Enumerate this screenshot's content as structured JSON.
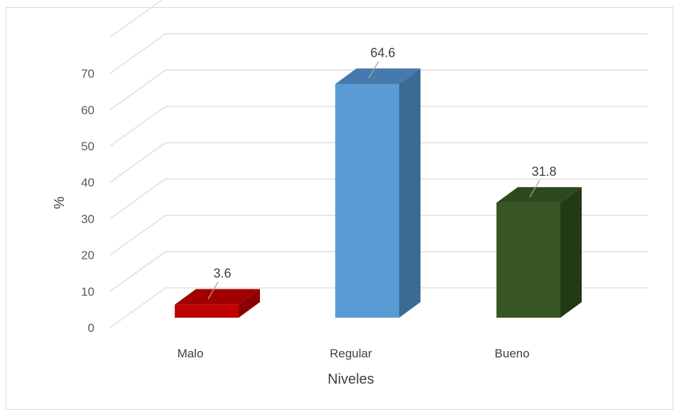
{
  "chart_data": {
    "type": "bar",
    "style": "3d-column",
    "categories": [
      "Malo",
      "Regular",
      "Bueno"
    ],
    "values": [
      3.6,
      64.6,
      31.8
    ],
    "value_labels": [
      "3.6",
      "64.6",
      "31.8"
    ],
    "colors": [
      "#c00000",
      "#5b9bd5",
      "#375623"
    ],
    "side_colors": [
      "#8b0000",
      "#3b6a93",
      "#233a16"
    ],
    "top_colors": [
      "#a20000",
      "#4679ad",
      "#2c4a1c"
    ],
    "xlabel": "Niveles",
    "ylabel": "%",
    "ylim": [
      0,
      70
    ],
    "yticks": [
      "0",
      "10",
      "20",
      "30",
      "40",
      "50",
      "60",
      "70"
    ],
    "grid": true,
    "gridline_color": "#d9d9d9",
    "legend": "none"
  }
}
